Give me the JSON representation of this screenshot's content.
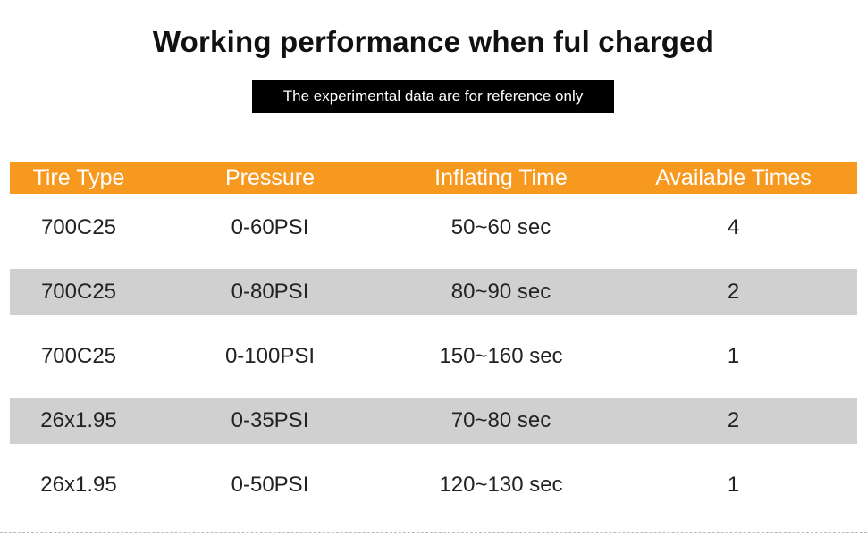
{
  "title": "Working performance when ful charged",
  "subtitle": "The experimental data are for reference only",
  "colors": {
    "header_bg": "#f7991f",
    "shaded_row_bg": "#d0d0d0",
    "subtitle_bg": "#000000"
  },
  "table": {
    "headers": [
      "Tire Type",
      "Pressure",
      "Inflating Time",
      "Available Times"
    ],
    "rows": [
      [
        "700C25",
        "0-60PSI",
        "50~60 sec",
        "4"
      ],
      [
        "700C25",
        "0-80PSI",
        "80~90 sec",
        "2"
      ],
      [
        "700C25",
        "0-100PSI",
        "150~160 sec",
        "1"
      ],
      [
        "26x1.95",
        "0-35PSI",
        "70~80 sec",
        "2"
      ],
      [
        "26x1.95",
        "0-50PSI",
        "120~130 sec",
        "1"
      ]
    ]
  }
}
